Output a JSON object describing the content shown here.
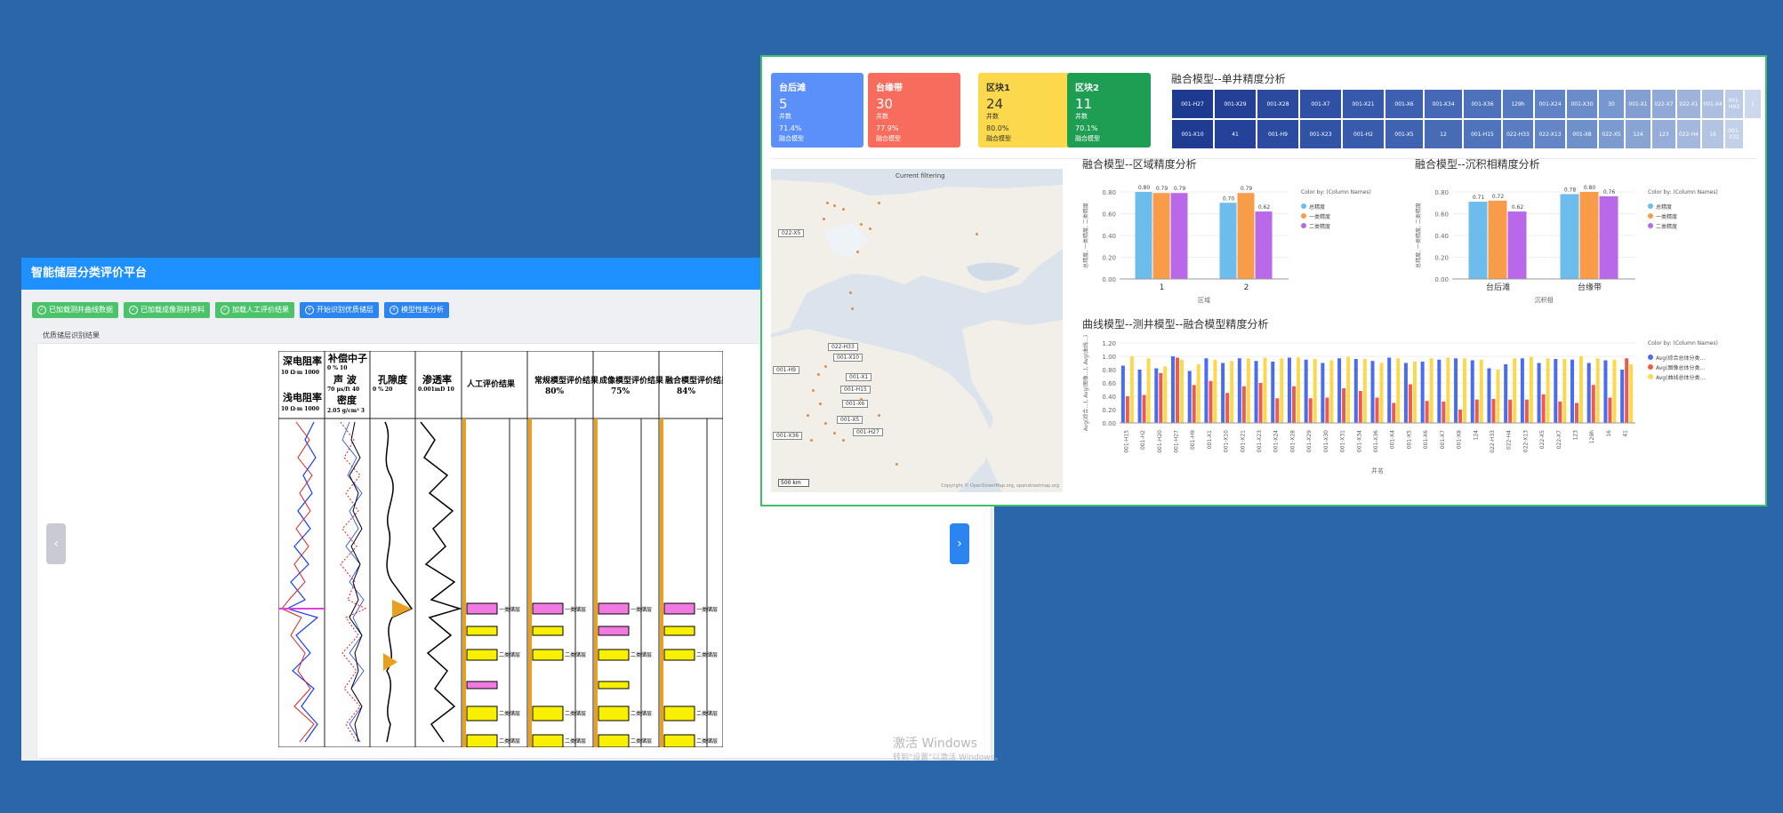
{
  "left_window": {
    "title": "智能储层分类评价平台",
    "toolbar": [
      {
        "label": "已加载测井曲线数据",
        "style": "green",
        "icon": "check-circle-icon"
      },
      {
        "label": "已加载成像测井资料",
        "style": "green",
        "icon": "check-circle-icon"
      },
      {
        "label": "加载人工评价结果",
        "style": "green",
        "icon": "check-circle-icon"
      },
      {
        "label": "开始识别优质储层",
        "style": "blue",
        "icon": "plus-circle-icon"
      },
      {
        "label": "模型性能分析",
        "style": "blue",
        "icon": "plus-circle-icon"
      }
    ],
    "section_label": "优质储层识别结果",
    "log_headers": {
      "resistivity_deep": "深电阻率",
      "resistivity_deep_scale": "10 Ω·m 1000",
      "resistivity_shallow": "浅电阻率",
      "resistivity_shallow_scale": "10 Ω·m 1000",
      "compensated_neutron": "补偿中子",
      "neutron_scale": "0 % 10",
      "sonic": "声 波",
      "sonic_scale": "70 μs/ft 40",
      "density": "密度",
      "density_scale": "2.05 g/cm³ 3",
      "porosity": "孔隙度",
      "porosity_scale": "0 % 20",
      "permeability": "渗透率",
      "permeability_scale": "0.001mD 10",
      "manual_result": "人工评价结果",
      "conventional_model": "常规模型评价结果",
      "conventional_accuracy": "80%",
      "imaging_model": "成像模型评价结果",
      "imaging_accuracy": "75%",
      "fusion_model": "融合模型评价结果",
      "fusion_accuracy": "84%",
      "class1_label": "一类储层",
      "class2_label": "二类储层"
    },
    "watermark_line1": "激活 Windows",
    "watermark_line2": "转到\"设置\"以激活 Windows。"
  },
  "kpis": [
    {
      "title": "台后滩",
      "count": "5",
      "count_label": "井数",
      "pct": "71.4%",
      "pct_label": "融合模型",
      "color": "#5b8ff9"
    },
    {
      "title": "台缘带",
      "count": "30",
      "count_label": "井数",
      "pct": "77.9%",
      "pct_label": "融合模型",
      "color": "#f86c5d"
    },
    {
      "title": "区块1",
      "count": "24",
      "count_label": "井数",
      "pct": "80.0%",
      "pct_label": "融合模型",
      "color": "#fcd94c"
    },
    {
      "title": "区块2",
      "count": "11",
      "count_label": "井数",
      "pct": "70.1%",
      "pct_label": "融合模型",
      "color": "#1e9e52"
    }
  ],
  "heatmap": {
    "title": "融合模型--单井精度分析",
    "cells": [
      "001-H27",
      "001-X29",
      "001-X28",
      "001-X7",
      "001-X21",
      "001-X6",
      "001-X34",
      "001-X36",
      "129h",
      "001-X24",
      "001-X30",
      "30",
      "001-X1",
      "022-X7",
      "022-X1",
      "001-X4",
      "001-H93",
      "1",
      "001-X10",
      "41",
      "001-H9",
      "001-X23",
      "001-H2",
      "001-X5",
      "12",
      "001-H15",
      "022-H33",
      "022-X13",
      "001-X8",
      "022-X5",
      "124",
      "123",
      "022-H4",
      "16",
      "001-X31"
    ],
    "colors": [
      "#1c3a8f",
      "#233f96",
      "#2a4a9e",
      "#2f50a4",
      "#3659ab",
      "#3d61b0",
      "#4569b6",
      "#4d72bb",
      "#567ac0",
      "#5f83c4",
      "#6a8cc9",
      "#7698ce",
      "#839fd1",
      "#90a9d6",
      "#9db3da",
      "#acbfe0",
      "#bccbe6",
      "#cdd8ec",
      "#1f3c92",
      "#24429a",
      "#2b4ba0",
      "#3153a6",
      "#385bab",
      "#4063b1",
      "#486bb6",
      "#5074bb",
      "#5a7dc1",
      "#6486c6",
      "#6f91ca",
      "#7b9acf",
      "#88a4d3",
      "#95add8",
      "#a3b8dc",
      "#b2c4e2",
      "#c3d1e8"
    ]
  },
  "map": {
    "title": "Current filtering",
    "labels": [
      "022-X5",
      "022-H33",
      "001-X10",
      "001-H9",
      "001-X1",
      "001-H15",
      "001-X6",
      "001-X5",
      "001-H27",
      "001-X36"
    ],
    "scale_label": "500 km",
    "attribution": "Copyright © OpenStreetMap.org, openstreetmap.org"
  },
  "chart_region": {
    "title": "融合模型--区域精度分析",
    "ylabel": "总精度, 一类精度, 二类精度",
    "xlabel": "区域",
    "legend_title": "Color by: (Column Names)",
    "series_names": [
      "总精度",
      "一类精度",
      "二类精度"
    ],
    "colors": [
      "#6cbcec",
      "#f89c4a",
      "#b968e9"
    ]
  },
  "chart_facies": {
    "title": "融合模型--沉积相精度分析",
    "ylabel": "总精度, 一类精度, 二类精度",
    "xlabel": "沉积相",
    "legend_title": "Color by: (Column Names)",
    "series_names": [
      "总精度",
      "一类精度",
      "二类精度"
    ],
    "colors": [
      "#6cbcec",
      "#f89c4a",
      "#b968e9"
    ]
  },
  "chart_curve": {
    "title": "曲线模型--测井模型--融合模型精度分析",
    "ylabel": "Avg(综合...), Avg(图像...), Avg(曲线...)",
    "xlabel": "井名",
    "legend_title": "Color by: (Column Names)",
    "series_names": [
      "Avg(综合总体分类...",
      "Avg(图像总体分类...",
      "Avg(曲线总体分类..."
    ],
    "colors": [
      "#4a6cf0",
      "#f05a4a",
      "#fcd94c"
    ]
  },
  "chart_data": [
    {
      "type": "bar",
      "title": "融合模型--区域精度分析",
      "categories": [
        "1",
        "2"
      ],
      "series": [
        {
          "name": "总精度",
          "values": [
            0.8,
            0.7
          ]
        },
        {
          "name": "一类精度",
          "values": [
            0.79,
            0.79
          ]
        },
        {
          "name": "二类精度",
          "values": [
            0.79,
            0.62
          ]
        }
      ],
      "xlabel": "区域",
      "ylim": [
        0,
        0.8
      ],
      "yticks": [
        "0.00",
        "0.20",
        "0.40",
        "0.60",
        "0.80"
      ],
      "legend": "right"
    },
    {
      "type": "bar",
      "title": "融合模型--沉积相精度分析",
      "categories": [
        "台后滩",
        "台缘带"
      ],
      "series": [
        {
          "name": "总精度",
          "values": [
            0.71,
            0.78
          ]
        },
        {
          "name": "一类精度",
          "values": [
            0.72,
            0.8
          ]
        },
        {
          "name": "二类精度",
          "values": [
            0.62,
            0.76
          ]
        }
      ],
      "xlabel": "沉积相",
      "ylim": [
        0,
        0.8
      ],
      "yticks": [
        "0.00",
        "0.20",
        "0.40",
        "0.60",
        "0.80"
      ],
      "legend": "right"
    },
    {
      "type": "bar",
      "title": "曲线模型--测井模型--融合模型精度分析",
      "categories": [
        "001-H15",
        "001-H2",
        "001-H20",
        "001-H27",
        "001-H9",
        "001-X1",
        "001-X10",
        "001-X21",
        "001-X23",
        "001-X24",
        "001-X28",
        "001-X29",
        "001-X30",
        "001-X31",
        "001-X34",
        "001-X36",
        "001-X4",
        "001-X5",
        "001-X6",
        "001-X7",
        "001-X8",
        "124",
        "022-H33",
        "022-H4",
        "022-X13",
        "022-X5",
        "022-X7",
        "123",
        "129h",
        "16",
        "41"
      ],
      "series": [
        {
          "name": "Avg(综合总体分类...",
          "values": [
            0.86,
            0.8,
            0.82,
            1.0,
            0.78,
            0.97,
            0.9,
            0.97,
            0.93,
            0.92,
            0.98,
            0.95,
            0.9,
            0.97,
            0.96,
            0.93,
            0.98,
            0.9,
            0.92,
            0.95,
            0.97,
            0.94,
            0.82,
            0.88,
            0.97,
            0.9,
            0.96,
            0.95,
            0.9,
            0.94,
            0.8
          ]
        },
        {
          "name": "Avg(图像总体分类...",
          "values": [
            0.4,
            0.42,
            0.75,
            0.98,
            0.57,
            0.63,
            0.45,
            0.55,
            0.6,
            0.37,
            0.55,
            0.37,
            0.38,
            0.52,
            0.48,
            0.38,
            0.3,
            0.58,
            0.33,
            0.32,
            0.2,
            0.35,
            0.36,
            0.35,
            0.35,
            0.43,
            0.32,
            0.3,
            0.57,
            0.38,
            0.97
          ]
        },
        {
          "name": "Avg(曲线总体分类...",
          "values": [
            1.0,
            0.97,
            0.85,
            0.95,
            0.88,
            0.95,
            0.93,
            0.97,
            0.98,
            0.97,
            0.98,
            0.96,
            0.94,
            0.99,
            0.96,
            0.9,
            0.97,
            0.92,
            0.97,
            0.98,
            0.97,
            0.95,
            0.8,
            0.97,
            0.99,
            0.97,
            0.96,
            1.0,
            0.97,
            0.95,
            0.88
          ]
        }
      ],
      "xlabel": "井名",
      "ylim": [
        0,
        1.2
      ],
      "yticks": [
        "0.00",
        "0.20",
        "0.40",
        "0.60",
        "0.80",
        "1.00",
        "1.20"
      ],
      "legend": "right"
    }
  ]
}
